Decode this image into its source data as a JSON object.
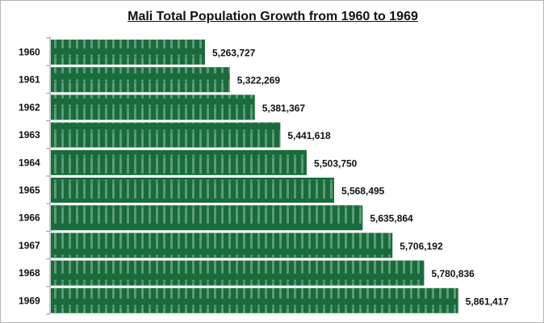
{
  "chart_data": {
    "type": "bar",
    "orientation": "horizontal",
    "title": "Mali Total Population Growth from 1960 to 1969",
    "categories": [
      "1960",
      "1961",
      "1962",
      "1963",
      "1964",
      "1965",
      "1966",
      "1967",
      "1968",
      "1969"
    ],
    "values": [
      5263727,
      5322269,
      5381367,
      5441618,
      5503750,
      5568495,
      5635864,
      5706192,
      5780836,
      5861417
    ],
    "value_labels": [
      "5,263,727",
      "5,322,269",
      "5,381,367",
      "5,441,618",
      "5,503,750",
      "5,568,495",
      "5,635,864",
      "5,706,192",
      "5,780,836",
      "5,861,417"
    ],
    "xlim": [
      4900000,
      5900000
    ],
    "grid": false,
    "colors": {
      "bar": "#1a6b3c",
      "figure": "#6aa884"
    }
  }
}
